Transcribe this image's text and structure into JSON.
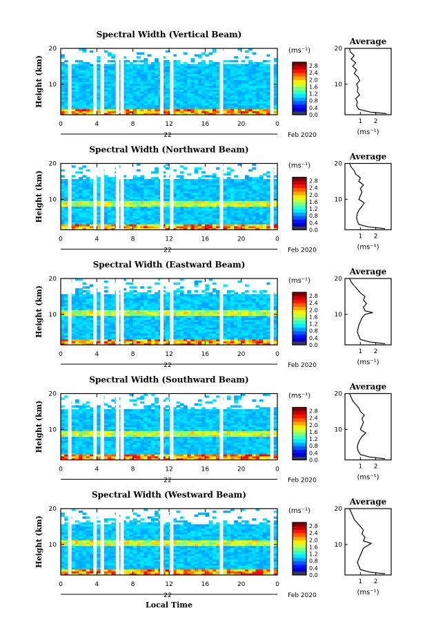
{
  "figure": {
    "x_label": "Local Time",
    "date_label": "Feb 2020",
    "day_label": "22",
    "colorbar_unit": "(ms⁻¹)",
    "average_title": "Average",
    "average_unit": "(ms⁻¹)"
  },
  "chart_data": [
    {
      "type": "heatmap",
      "title": "Spectral Width (Vertical Beam)",
      "xlabel": "",
      "ylabel": "Height (km)",
      "xlim": [
        0,
        24
      ],
      "ylim": [
        1.5,
        20
      ],
      "xticks": [
        "0",
        "4",
        "8",
        "12",
        "16",
        "20",
        "0"
      ],
      "yticks": [
        "10",
        "20"
      ],
      "colorbar": {
        "ticks": [
          "0.0",
          "0.4",
          "0.8",
          "1.2",
          "1.6",
          "2.0",
          "2.4",
          "2.8"
        ],
        "range": [
          0,
          3.0
        ],
        "unit": "ms-1"
      },
      "data_gaps_hours": [
        1.0,
        3.8,
        4.6,
        6.3,
        6.8,
        11.2,
        12.3,
        17.8,
        23.4
      ],
      "enhanced_layers_km": [
        2.0
      ],
      "average": {
        "title": "Average",
        "xticks": [
          "1",
          "2"
        ],
        "xlim": [
          0,
          3
        ],
        "ylim": [
          1.5,
          20
        ],
        "profile": [
          {
            "h": 1.8,
            "w": 2.7
          },
          {
            "h": 2.2,
            "w": 1.7
          },
          {
            "h": 3.0,
            "w": 0.9
          },
          {
            "h": 4.0,
            "w": 0.75
          },
          {
            "h": 5.0,
            "w": 0.8
          },
          {
            "h": 6.0,
            "w": 0.7
          },
          {
            "h": 7.0,
            "w": 0.95
          },
          {
            "h": 8.0,
            "w": 0.8
          },
          {
            "h": 9.0,
            "w": 0.85
          },
          {
            "h": 10.0,
            "w": 0.75
          },
          {
            "h": 11.0,
            "w": 0.95
          },
          {
            "h": 12.0,
            "w": 0.85
          },
          {
            "h": 13.0,
            "w": 0.6
          },
          {
            "h": 14.0,
            "w": 0.75
          },
          {
            "h": 15.0,
            "w": 0.5
          },
          {
            "h": 16.0,
            "w": 0.7
          },
          {
            "h": 17.0,
            "w": 0.4
          },
          {
            "h": 18.0,
            "w": 0.6
          },
          {
            "h": 19.0,
            "w": 0.35
          },
          {
            "h": 20.0,
            "w": 0.3
          }
        ]
      }
    },
    {
      "type": "heatmap",
      "title": "Spectral Width (Northward Beam)",
      "xlabel": "",
      "ylabel": "Height (km)",
      "xlim": [
        0,
        24
      ],
      "ylim": [
        1.5,
        20
      ],
      "xticks": [
        "0",
        "4",
        "8",
        "12",
        "16",
        "20",
        "0"
      ],
      "yticks": [
        "10",
        "20"
      ],
      "colorbar": {
        "ticks": [
          "0.0",
          "0.4",
          "0.8",
          "1.2",
          "1.6",
          "2.0",
          "2.4",
          "2.8"
        ],
        "range": [
          0,
          3.0
        ],
        "unit": "ms-1"
      },
      "data_gaps_hours": [
        1.0,
        3.8,
        4.6,
        6.3,
        6.8,
        11.2,
        12.3,
        17.8,
        23.4
      ],
      "enhanced_layers_km": [
        2.0,
        9.0
      ],
      "average": {
        "title": "Average",
        "xticks": [
          "1",
          "2"
        ],
        "xlim": [
          0,
          3
        ],
        "ylim": [
          1.5,
          20
        ],
        "profile": [
          {
            "h": 1.8,
            "w": 2.6
          },
          {
            "h": 2.3,
            "w": 1.5
          },
          {
            "h": 3.0,
            "w": 0.9
          },
          {
            "h": 4.0,
            "w": 0.8
          },
          {
            "h": 5.0,
            "w": 0.75
          },
          {
            "h": 6.0,
            "w": 0.8
          },
          {
            "h": 7.0,
            "w": 0.9
          },
          {
            "h": 8.0,
            "w": 1.1
          },
          {
            "h": 9.0,
            "w": 1.25
          },
          {
            "h": 10.0,
            "w": 0.9
          },
          {
            "h": 11.0,
            "w": 1.0
          },
          {
            "h": 12.0,
            "w": 1.1
          },
          {
            "h": 13.0,
            "w": 1.0
          },
          {
            "h": 14.0,
            "w": 1.2
          },
          {
            "h": 15.0,
            "w": 0.9
          },
          {
            "h": 16.0,
            "w": 1.0
          },
          {
            "h": 17.0,
            "w": 0.7
          },
          {
            "h": 18.0,
            "w": 0.6
          },
          {
            "h": 19.0,
            "w": 0.4
          },
          {
            "h": 20.0,
            "w": 0.3
          }
        ]
      }
    },
    {
      "type": "heatmap",
      "title": "Spectral Width (Eastward Beam)",
      "xlabel": "",
      "ylabel": "Height (km)",
      "xlim": [
        0,
        24
      ],
      "ylim": [
        1.5,
        20
      ],
      "xticks": [
        "0",
        "4",
        "8",
        "12",
        "16",
        "20",
        "0"
      ],
      "yticks": [
        "10",
        "20"
      ],
      "colorbar": {
        "ticks": [
          "0.0",
          "0.4",
          "0.8",
          "1.2",
          "1.6",
          "2.0",
          "2.4",
          "2.8"
        ],
        "range": [
          0,
          3.0
        ],
        "unit": "ms-1"
      },
      "data_gaps_hours": [
        1.0,
        3.8,
        4.6,
        6.3,
        6.8,
        11.2,
        12.3,
        17.8,
        23.4
      ],
      "enhanced_layers_km": [
        2.0,
        10.5
      ],
      "average": {
        "title": "Average",
        "xticks": [
          "1",
          "2"
        ],
        "xlim": [
          0,
          3
        ],
        "ylim": [
          1.5,
          20
        ],
        "profile": [
          {
            "h": 1.8,
            "w": 2.6
          },
          {
            "h": 2.3,
            "w": 1.6
          },
          {
            "h": 3.0,
            "w": 1.0
          },
          {
            "h": 4.0,
            "w": 0.9
          },
          {
            "h": 5.0,
            "w": 0.8
          },
          {
            "h": 6.0,
            "w": 0.85
          },
          {
            "h": 7.0,
            "w": 0.9
          },
          {
            "h": 8.0,
            "w": 1.0
          },
          {
            "h": 9.0,
            "w": 1.1
          },
          {
            "h": 10.0,
            "w": 1.3
          },
          {
            "h": 10.5,
            "w": 1.8
          },
          {
            "h": 11.0,
            "w": 1.3
          },
          {
            "h": 12.0,
            "w": 1.2
          },
          {
            "h": 13.0,
            "w": 1.4
          },
          {
            "h": 14.0,
            "w": 1.2
          },
          {
            "h": 15.0,
            "w": 1.3
          },
          {
            "h": 16.0,
            "w": 1.0
          },
          {
            "h": 17.0,
            "w": 0.8
          },
          {
            "h": 18.0,
            "w": 0.6
          },
          {
            "h": 19.0,
            "w": 0.4
          },
          {
            "h": 20.0,
            "w": 0.3
          }
        ]
      }
    },
    {
      "type": "heatmap",
      "title": "Spectral Width (Southward Beam)",
      "xlabel": "",
      "ylabel": "Height (km)",
      "xlim": [
        0,
        24
      ],
      "ylim": [
        1.5,
        20
      ],
      "xticks": [
        "0",
        "4",
        "8",
        "12",
        "16",
        "20",
        "0"
      ],
      "yticks": [
        "10",
        "20"
      ],
      "colorbar": {
        "ticks": [
          "0.0",
          "0.4",
          "0.8",
          "1.2",
          "1.6",
          "2.0",
          "2.4",
          "2.8"
        ],
        "range": [
          0,
          3.0
        ],
        "unit": "ms-1"
      },
      "data_gaps_hours": [
        1.0,
        3.8,
        4.6,
        6.3,
        6.8,
        11.2,
        12.3,
        17.8,
        23.4
      ],
      "enhanced_layers_km": [
        2.0,
        9.0
      ],
      "average": {
        "title": "Average",
        "xticks": [
          "1",
          "2"
        ],
        "xlim": [
          0,
          3
        ],
        "ylim": [
          1.5,
          20
        ],
        "profile": [
          {
            "h": 1.8,
            "w": 2.6
          },
          {
            "h": 2.3,
            "w": 1.6
          },
          {
            "h": 3.0,
            "w": 1.0
          },
          {
            "h": 4.0,
            "w": 0.85
          },
          {
            "h": 5.0,
            "w": 0.8
          },
          {
            "h": 6.0,
            "w": 0.85
          },
          {
            "h": 7.0,
            "w": 0.95
          },
          {
            "h": 8.0,
            "w": 1.1
          },
          {
            "h": 9.0,
            "w": 1.35
          },
          {
            "h": 10.0,
            "w": 1.0
          },
          {
            "h": 11.0,
            "w": 1.1
          },
          {
            "h": 12.0,
            "w": 1.2
          },
          {
            "h": 13.0,
            "w": 1.1
          },
          {
            "h": 14.0,
            "w": 1.25
          },
          {
            "h": 15.0,
            "w": 1.0
          },
          {
            "h": 16.0,
            "w": 0.9
          },
          {
            "h": 17.0,
            "w": 0.7
          },
          {
            "h": 18.0,
            "w": 0.5
          },
          {
            "h": 19.0,
            "w": 0.4
          },
          {
            "h": 20.0,
            "w": 0.3
          }
        ]
      }
    },
    {
      "type": "heatmap",
      "title": "Spectral Width (Westward Beam)",
      "xlabel": "Local Time",
      "ylabel": "Height (km)",
      "xlim": [
        0,
        24
      ],
      "ylim": [
        1.5,
        20
      ],
      "xticks": [
        "0",
        "4",
        "8",
        "12",
        "16",
        "20",
        "0"
      ],
      "yticks": [
        "10",
        "20"
      ],
      "colorbar": {
        "ticks": [
          "0.0",
          "0.4",
          "0.8",
          "1.2",
          "1.6",
          "2.0",
          "2.4",
          "2.8"
        ],
        "range": [
          0,
          3.0
        ],
        "unit": "ms-1"
      },
      "data_gaps_hours": [
        1.0,
        3.8,
        4.6,
        6.3,
        6.8,
        11.2,
        12.3,
        17.8,
        23.4
      ],
      "enhanced_layers_km": [
        2.0,
        10.3
      ],
      "average": {
        "title": "Average",
        "xticks": [
          "1",
          "2"
        ],
        "xlim": [
          0,
          3
        ],
        "ylim": [
          1.5,
          20
        ],
        "profile": [
          {
            "h": 1.8,
            "w": 2.6
          },
          {
            "h": 2.3,
            "w": 1.6
          },
          {
            "h": 3.0,
            "w": 1.0
          },
          {
            "h": 4.0,
            "w": 0.9
          },
          {
            "h": 5.0,
            "w": 0.8
          },
          {
            "h": 6.0,
            "w": 0.9
          },
          {
            "h": 7.0,
            "w": 1.0
          },
          {
            "h": 8.0,
            "w": 1.1
          },
          {
            "h": 9.0,
            "w": 1.2
          },
          {
            "h": 10.3,
            "w": 1.7
          },
          {
            "h": 11.0,
            "w": 1.2
          },
          {
            "h": 12.0,
            "w": 1.3
          },
          {
            "h": 13.0,
            "w": 1.1
          },
          {
            "h": 14.0,
            "w": 1.2
          },
          {
            "h": 15.0,
            "w": 1.0
          },
          {
            "h": 16.0,
            "w": 0.8
          },
          {
            "h": 17.0,
            "w": 0.6
          },
          {
            "h": 18.0,
            "w": 0.5
          },
          {
            "h": 19.0,
            "w": 0.4
          },
          {
            "h": 20.0,
            "w": 0.3
          }
        ]
      }
    }
  ]
}
